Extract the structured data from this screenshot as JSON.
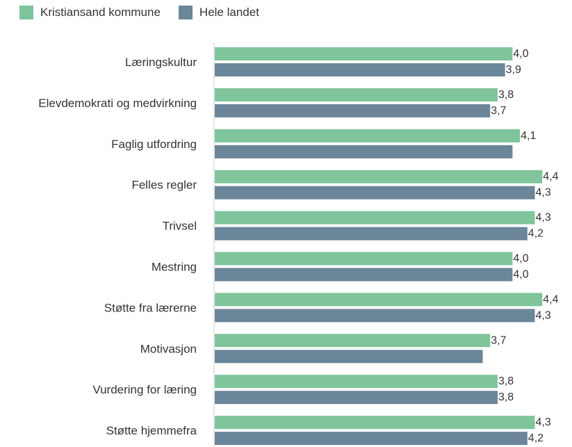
{
  "colors": {
    "kristiansand": "#7fc49b",
    "hele_landet": "#6b8599",
    "axis": "#cccccc"
  },
  "chart_data": {
    "type": "bar",
    "orientation": "horizontal",
    "title": "",
    "xlabel": "",
    "ylabel": "",
    "xlim": [
      0,
      4.65
    ],
    "grid": false,
    "legend_position": "top-left",
    "categories": [
      "Læringskultur",
      "Elevdemokrati og medvirkning",
      "Faglig utfordring",
      "Felles regler",
      "Trivsel",
      "Mestring",
      "Støtte fra lærerne",
      "Motivasjon",
      "Vurdering for læring",
      "Støtte hjemmefra"
    ],
    "series": [
      {
        "name": "Kristiansand kommune",
        "values": [
          4.0,
          3.8,
          4.1,
          4.4,
          4.3,
          4.0,
          4.4,
          3.7,
          3.8,
          4.3
        ],
        "labels": [
          "4,0",
          "3,8",
          "4,1",
          "4,4",
          "4,3",
          "4,0",
          "4,4",
          "3,7",
          "3,8",
          "4,3"
        ]
      },
      {
        "name": "Hele landet",
        "values": [
          3.9,
          3.7,
          4.0,
          4.3,
          4.2,
          4.0,
          4.3,
          3.6,
          3.8,
          4.2
        ],
        "labels": [
          "3,9",
          "3,7",
          "",
          "4,3",
          "4,2",
          "4,0",
          "4,3",
          "",
          "3,8",
          "4,2"
        ]
      }
    ]
  }
}
